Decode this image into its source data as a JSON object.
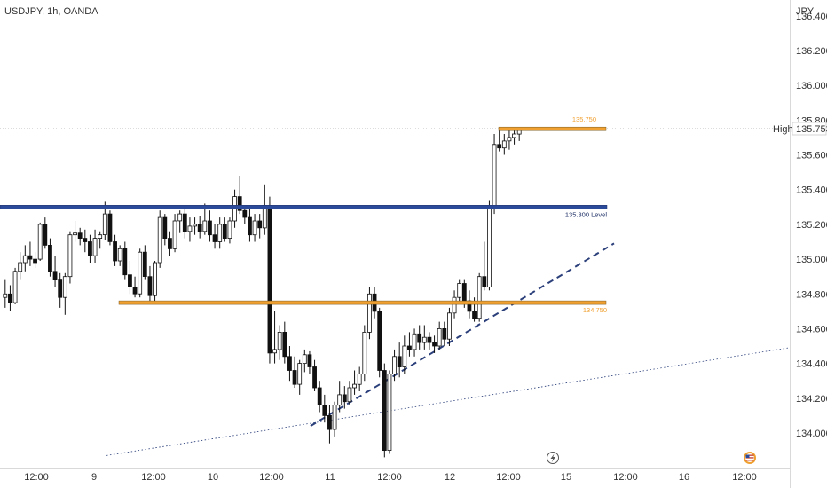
{
  "header": {
    "symbol_label": "USDJPY, 1h, OANDA"
  },
  "currency": "JPY",
  "chart_data": {
    "type": "candlestick",
    "symbol": "USDJPY",
    "timeframe": "1h",
    "source": "OANDA",
    "y_ticks": [
      134.0,
      134.2,
      134.4,
      134.6,
      134.8,
      135.0,
      135.2,
      135.4,
      135.6,
      135.8,
      136.0,
      136.2,
      136.4
    ],
    "y_tick_labels": [
      "134.000",
      "134.200",
      "134.400",
      "134.600",
      "134.800",
      "135.000",
      "135.200",
      "135.400",
      "135.600",
      "135.800",
      "136.000",
      "136.200",
      "136.400"
    ],
    "ylim": [
      133.86,
      136.54
    ],
    "x_tick_labels": [
      "12:00",
      "9",
      "12:00",
      "10",
      "12:00",
      "11",
      "12:00",
      "12",
      "12:00",
      "15",
      "12:00",
      "16",
      "12:00"
    ],
    "last_price": {
      "label": "High",
      "value": "135.753"
    },
    "levels": [
      {
        "label": "135.750",
        "value": 135.75,
        "color": "#f0a030",
        "range": "right"
      },
      {
        "label": "135.300 Level",
        "value": 135.3,
        "color": "#2b4a9a",
        "range": "full"
      },
      {
        "label": "134.750",
        "value": 134.75,
        "color": "#f0a030",
        "range": "partial"
      }
    ],
    "trendlines": [
      {
        "style": "dashed",
        "color": "#2b3f7a",
        "from_price": 134.04,
        "to_price": 135.09
      },
      {
        "style": "dotted",
        "color": "#2b3f7a",
        "from_price": 133.87,
        "to_price": 134.49
      }
    ],
    "candle_colors": {
      "up": "#ffffff",
      "down": "#111111",
      "wick": "#111111"
    },
    "candles": [
      [
        134.78,
        134.88,
        134.72,
        134.8
      ],
      [
        134.8,
        134.85,
        134.7,
        134.75
      ],
      [
        134.75,
        134.95,
        134.74,
        134.93
      ],
      [
        134.93,
        135.04,
        134.88,
        134.98
      ],
      [
        134.98,
        135.08,
        134.93,
        135.02
      ],
      [
        135.02,
        135.1,
        134.96,
        135.0
      ],
      [
        135.0,
        135.04,
        134.95,
        134.98
      ],
      [
        135.0,
        135.21,
        134.99,
        135.2
      ],
      [
        135.2,
        135.24,
        135.06,
        135.08
      ],
      [
        135.08,
        135.12,
        134.9,
        134.93
      ],
      [
        134.93,
        135.02,
        134.84,
        134.88
      ],
      [
        134.88,
        134.92,
        134.72,
        134.78
      ],
      [
        134.78,
        134.92,
        134.68,
        134.9
      ],
      [
        134.9,
        135.16,
        134.86,
        135.14
      ],
      [
        135.14,
        135.22,
        135.1,
        135.15
      ],
      [
        135.15,
        135.18,
        135.08,
        135.12
      ],
      [
        135.12,
        135.17,
        135.04,
        135.1
      ],
      [
        135.1,
        135.14,
        134.98,
        135.02
      ],
      [
        135.02,
        135.17,
        134.98,
        135.12
      ],
      [
        135.12,
        135.16,
        135.06,
        135.14
      ],
      [
        135.14,
        135.33,
        135.11,
        135.26
      ],
      [
        135.26,
        135.28,
        135.08,
        135.1
      ],
      [
        135.1,
        135.14,
        134.96,
        134.99
      ],
      [
        134.99,
        135.08,
        134.96,
        135.06
      ],
      [
        135.06,
        135.1,
        134.88,
        134.91
      ],
      [
        134.91,
        134.99,
        134.8,
        134.84
      ],
      [
        134.84,
        134.9,
        134.78,
        134.8
      ],
      [
        134.8,
        135.06,
        134.78,
        135.04
      ],
      [
        135.04,
        135.08,
        134.88,
        134.9
      ],
      [
        134.9,
        134.96,
        134.76,
        134.79
      ],
      [
        134.79,
        134.99,
        134.76,
        134.98
      ],
      [
        134.98,
        135.28,
        134.95,
        135.24
      ],
      [
        135.24,
        135.26,
        135.08,
        135.12
      ],
      [
        135.12,
        135.16,
        135.02,
        135.06
      ],
      [
        135.06,
        135.26,
        135.04,
        135.22
      ],
      [
        135.22,
        135.28,
        135.15,
        135.26
      ],
      [
        135.26,
        135.3,
        135.12,
        135.16
      ],
      [
        135.16,
        135.24,
        135.1,
        135.19
      ],
      [
        135.19,
        135.24,
        135.14,
        135.2
      ],
      [
        135.2,
        135.25,
        135.12,
        135.16
      ],
      [
        135.16,
        135.32,
        135.14,
        135.22
      ],
      [
        135.22,
        135.28,
        135.1,
        135.14
      ],
      [
        135.14,
        135.2,
        135.06,
        135.1
      ],
      [
        135.1,
        135.24,
        135.06,
        135.2
      ],
      [
        135.2,
        135.24,
        135.1,
        135.12
      ],
      [
        135.12,
        135.24,
        135.09,
        135.22
      ],
      [
        135.22,
        135.4,
        135.18,
        135.36
      ],
      [
        135.36,
        135.48,
        135.26,
        135.28
      ],
      [
        135.28,
        135.3,
        135.2,
        135.24
      ],
      [
        135.24,
        135.3,
        135.1,
        135.14
      ],
      [
        135.14,
        135.26,
        135.1,
        135.22
      ],
      [
        135.22,
        135.26,
        135.12,
        135.18
      ],
      [
        135.18,
        135.43,
        135.14,
        135.31
      ],
      [
        135.31,
        135.36,
        134.4,
        134.46
      ],
      [
        134.46,
        134.7,
        134.4,
        134.48
      ],
      [
        134.48,
        134.62,
        134.42,
        134.58
      ],
      [
        134.58,
        134.64,
        134.4,
        134.44
      ],
      [
        134.44,
        134.5,
        134.3,
        134.36
      ],
      [
        134.36,
        134.44,
        134.26,
        134.28
      ],
      [
        134.28,
        134.42,
        134.22,
        134.4
      ],
      [
        134.4,
        134.48,
        134.35,
        134.45
      ],
      [
        134.45,
        134.47,
        134.34,
        134.38
      ],
      [
        134.38,
        134.42,
        134.24,
        134.26
      ],
      [
        134.26,
        134.3,
        134.12,
        134.16
      ],
      [
        134.16,
        134.22,
        134.06,
        134.1
      ],
      [
        134.1,
        134.16,
        133.94,
        134.02
      ],
      [
        134.02,
        134.18,
        133.98,
        134.16
      ],
      [
        134.16,
        134.3,
        134.12,
        134.22
      ],
      [
        134.22,
        134.27,
        134.14,
        134.18
      ],
      [
        134.18,
        134.3,
        134.16,
        134.26
      ],
      [
        134.26,
        134.36,
        134.22,
        134.28
      ],
      [
        134.28,
        134.38,
        134.24,
        134.34
      ],
      [
        134.34,
        134.62,
        134.3,
        134.58
      ],
      [
        134.58,
        134.84,
        134.54,
        134.8
      ],
      [
        134.8,
        134.84,
        134.66,
        134.7
      ],
      [
        134.7,
        134.72,
        134.32,
        134.36
      ],
      [
        134.36,
        134.4,
        133.86,
        133.9
      ],
      [
        133.9,
        134.36,
        133.88,
        134.34
      ],
      [
        134.34,
        134.48,
        134.3,
        134.44
      ],
      [
        134.44,
        134.52,
        134.32,
        134.38
      ],
      [
        134.38,
        134.56,
        134.34,
        134.5
      ],
      [
        134.5,
        134.58,
        134.44,
        134.48
      ],
      [
        134.48,
        134.6,
        134.44,
        134.57
      ],
      [
        134.57,
        134.62,
        134.48,
        134.52
      ],
      [
        134.52,
        134.62,
        134.48,
        134.55
      ],
      [
        134.55,
        134.58,
        134.48,
        134.52
      ],
      [
        134.52,
        134.56,
        134.46,
        134.5
      ],
      [
        134.5,
        134.64,
        134.48,
        134.6
      ],
      [
        134.6,
        134.64,
        134.5,
        134.54
      ],
      [
        134.54,
        134.72,
        134.5,
        134.69
      ],
      [
        134.69,
        134.82,
        134.66,
        134.78
      ],
      [
        134.78,
        134.88,
        134.74,
        134.86
      ],
      [
        134.86,
        134.88,
        134.72,
        134.76
      ],
      [
        134.76,
        134.82,
        134.66,
        134.7
      ],
      [
        134.7,
        134.78,
        134.64,
        134.66
      ],
      [
        134.66,
        134.92,
        134.64,
        134.9
      ],
      [
        134.9,
        135.1,
        134.82,
        134.84
      ],
      [
        134.84,
        135.34,
        134.82,
        135.3
      ],
      [
        135.3,
        135.72,
        135.26,
        135.66
      ],
      [
        135.66,
        135.75,
        135.62,
        135.64
      ],
      [
        135.64,
        135.72,
        135.6,
        135.68
      ],
      [
        135.68,
        135.74,
        135.63,
        135.7
      ],
      [
        135.7,
        135.75,
        135.66,
        135.72
      ],
      [
        135.72,
        135.76,
        135.68,
        135.75
      ]
    ]
  },
  "icons": {
    "lightning": "lightning-icon",
    "flag": "us-flag-icon"
  }
}
